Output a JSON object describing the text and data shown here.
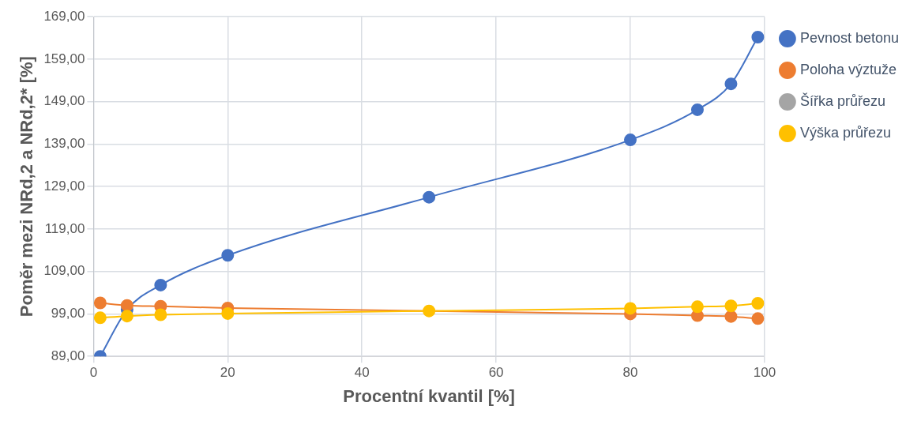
{
  "chart_data": {
    "type": "line",
    "xlabel": "Procentní kvantil [%]",
    "ylabel": "Poměr mezi NRd,2 a NRd,2* [%]",
    "x": [
      1,
      5,
      10,
      20,
      50,
      80,
      90,
      95,
      99
    ],
    "series": [
      {
        "name": "Pevnost betonu",
        "color": "#4472c4",
        "values": [
          89.0,
          100.0,
          105.8,
          112.8,
          126.5,
          140.0,
          147.1,
          153.2,
          164.2
        ]
      },
      {
        "name": "Poloha výztuže",
        "color": "#ed7d31",
        "values": [
          101.6,
          101.0,
          100.8,
          100.4,
          null,
          99.0,
          98.6,
          98.4,
          97.9
        ]
      },
      {
        "name": "Šířka průřezu",
        "color": "#a5a5a5",
        "values": [
          null,
          null,
          null,
          null,
          null,
          null,
          null,
          null,
          null
        ]
      },
      {
        "name": "Výška průřezu",
        "color": "#ffc000",
        "values": [
          98.1,
          98.5,
          98.8,
          99.1,
          99.7,
          100.3,
          100.7,
          100.9,
          101.5
        ]
      }
    ],
    "xlim": [
      0,
      100
    ],
    "xticks": [
      0,
      20,
      40,
      60,
      80,
      100
    ],
    "ylim": [
      89,
      169
    ],
    "yticks": [
      {
        "value": 89,
        "label": "89,00"
      },
      {
        "value": 99,
        "label": "99,00"
      },
      {
        "value": 109,
        "label": "109,00"
      },
      {
        "value": 119,
        "label": "119,00"
      },
      {
        "value": 129,
        "label": "129,00"
      },
      {
        "value": 139,
        "label": "139,00"
      },
      {
        "value": 149,
        "label": "149,00"
      },
      {
        "value": 159,
        "label": "159,00"
      },
      {
        "value": 169,
        "label": "169,00"
      }
    ],
    "grid": true,
    "legend": "right",
    "marker": "circle",
    "line_style": "solid"
  }
}
